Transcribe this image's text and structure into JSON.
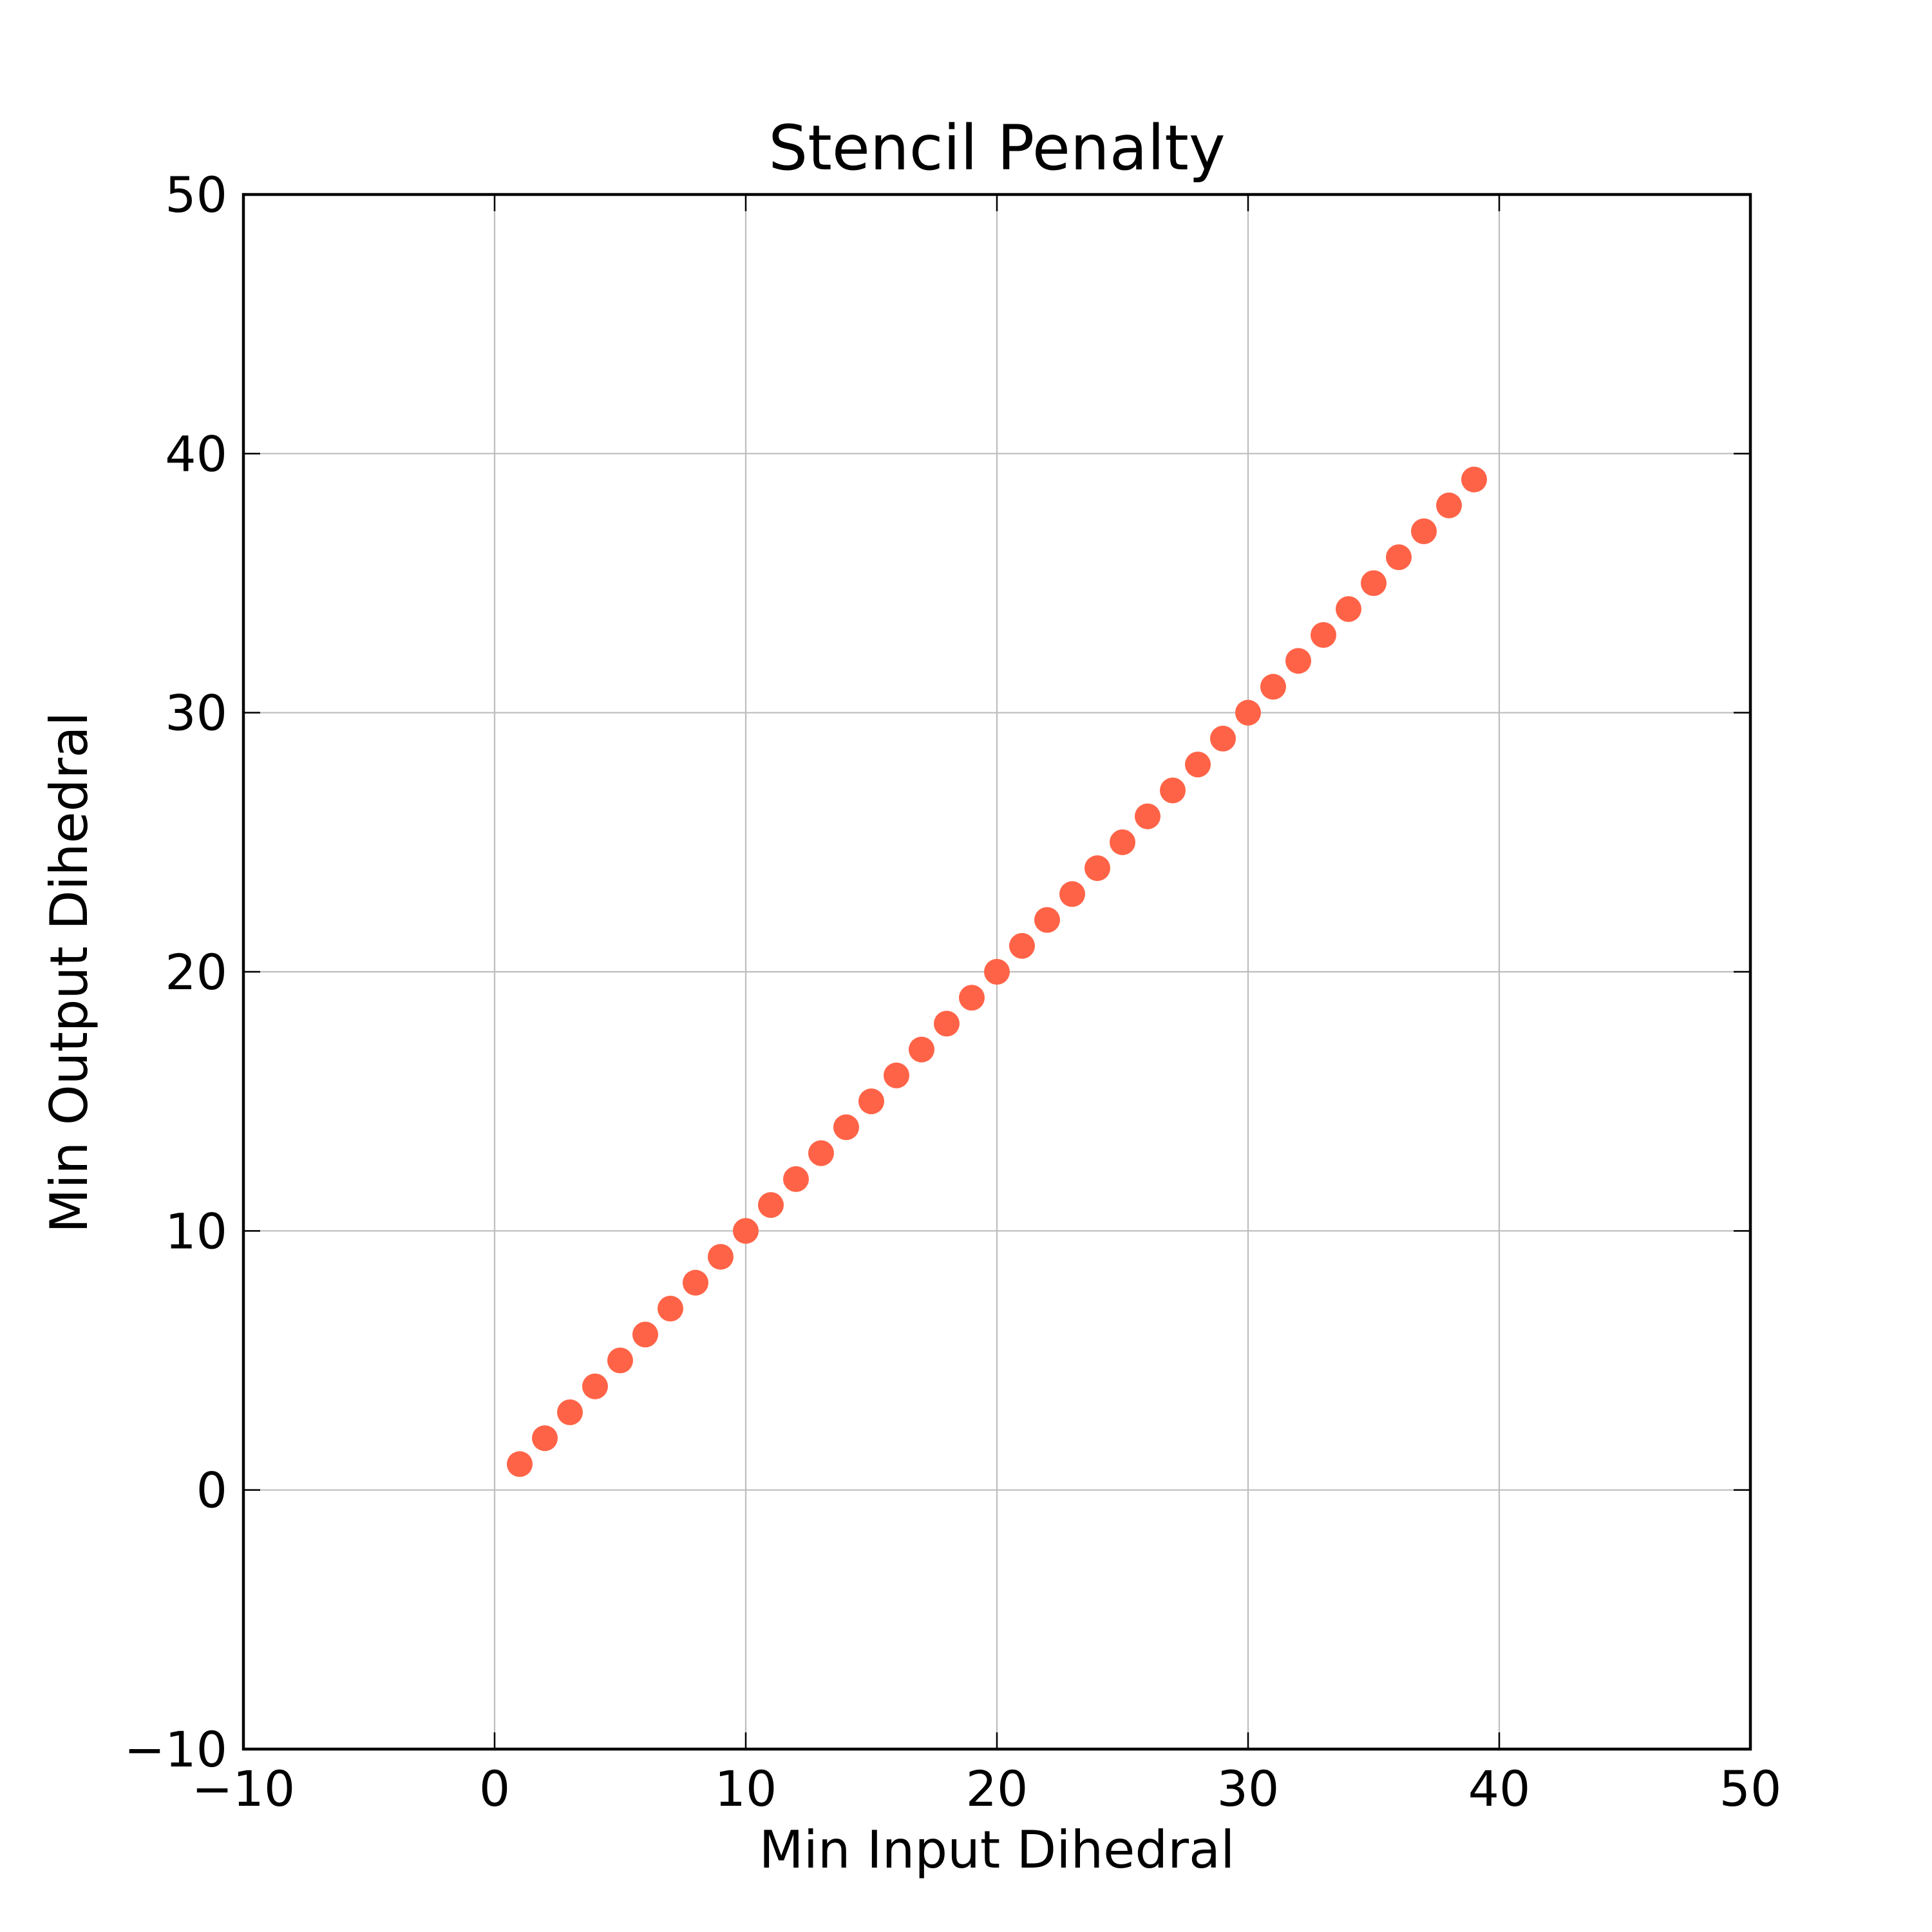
{
  "chart_data": {
    "type": "scatter",
    "title": "Stencil Penalty",
    "xlabel": "Min Input Dihedral",
    "ylabel": "Min Output Dihedral",
    "xlim": [
      -10,
      50
    ],
    "ylim": [
      -10,
      50
    ],
    "x_ticks": [
      -10,
      0,
      10,
      20,
      30,
      40,
      50
    ],
    "y_ticks": [
      -10,
      0,
      10,
      20,
      30,
      40,
      50
    ],
    "x_tick_labels": [
      "−10",
      "0",
      "10",
      "20",
      "30",
      "40",
      "50"
    ],
    "y_tick_labels": [
      "−10",
      "0",
      "10",
      "20",
      "30",
      "40",
      "50"
    ],
    "grid": true,
    "legend": "none",
    "marker_color": "#ff6347",
    "series": [
      {
        "x": [
          1,
          2,
          3,
          4,
          5,
          6,
          7,
          8,
          9,
          10,
          11,
          12,
          13,
          14,
          15,
          16,
          17,
          18,
          19,
          20,
          21,
          22,
          23,
          24,
          25,
          26,
          27,
          28,
          29,
          30,
          31,
          32,
          33,
          34,
          35,
          36,
          37,
          38,
          39
        ],
        "y": [
          1,
          2,
          3,
          4,
          5,
          6,
          7,
          8,
          9,
          10,
          11,
          12,
          13,
          14,
          15,
          16,
          17,
          18,
          19,
          20,
          21,
          22,
          23,
          24,
          25,
          26,
          27,
          28,
          29,
          30,
          31,
          32,
          33,
          34,
          35,
          36,
          37,
          38,
          39
        ]
      }
    ]
  }
}
